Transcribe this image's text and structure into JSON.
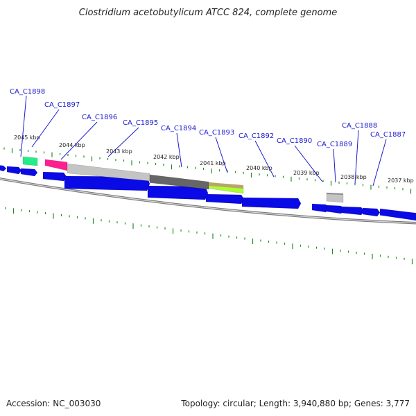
{
  "title": "Clostridium acetobutylicum ATCC 824, complete genome",
  "footer": {
    "accession": "Accession: NC_003030",
    "summary": "Topology: circular; Length: 3,940,880 bp; Genes: 3,777"
  },
  "colors": {
    "forward_cds": "#0a0ae6",
    "reverse_cds_light": "#c4c4c4",
    "reverse_cds_dark": "#666666",
    "rna_magenta": "#ff1f8e",
    "rna_green": "#22ee88",
    "rna_lime": "#aaff33",
    "rna_olive": "#b8a668",
    "tick": "#228b22",
    "label": "#1a1acc"
  },
  "kbp_markers": [
    "2045 kbp",
    "2044 kbp",
    "2043 kbp",
    "2042 kbp",
    "2041 kbp",
    "2040 kbp",
    "2039 kbp",
    "2038 kbp",
    "2037 kbp"
  ],
  "gene_labels": [
    "CA_C1898",
    "CA_C1897",
    "CA_C1896",
    "CA_C1895",
    "CA_C1894",
    "CA_C1893",
    "CA_C1892",
    "CA_C1890",
    "CA_C1889",
    "CA_C1888",
    "CA_C1887"
  ],
  "features": [
    {
      "strand": "forward",
      "type": "CDS"
    },
    {
      "strand": "forward",
      "type": "CDS"
    },
    {
      "strand": "forward",
      "type": "CDS"
    },
    {
      "strand": "forward",
      "type": "CDS"
    },
    {
      "strand": "forward",
      "type": "CDS"
    },
    {
      "strand": "forward",
      "type": "CDS"
    },
    {
      "strand": "forward",
      "type": "CDS"
    },
    {
      "strand": "forward",
      "type": "CDS"
    },
    {
      "strand": "forward",
      "type": "CDS"
    },
    {
      "strand": "forward",
      "type": "CDS"
    },
    {
      "strand": "forward",
      "type": "CDS"
    },
    {
      "strand": "forward",
      "type": "CDS"
    },
    {
      "strand": "reverse",
      "type": "RNA"
    },
    {
      "strand": "reverse",
      "type": "RNA"
    },
    {
      "strand": "reverse",
      "type": "CDS"
    },
    {
      "strand": "reverse",
      "type": "CDS"
    },
    {
      "strand": "reverse",
      "type": "RNA"
    },
    {
      "strand": "reverse",
      "type": "CDS"
    }
  ]
}
